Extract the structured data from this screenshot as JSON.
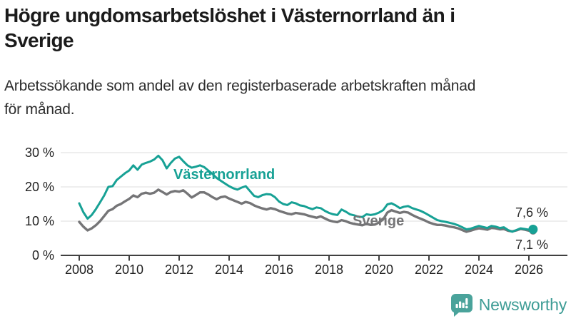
{
  "header": {
    "title_lines": [
      "Högre ungdomsarbetslöshet i Västernorrland än i",
      "Sverige"
    ],
    "subtitle_lines": [
      "Arbetssökande som andel av den registerbaserade arbetskraften månad",
      "för månad."
    ]
  },
  "chart_data": {
    "type": "line",
    "title": "Högre ungdomsarbetslöshet i Västernorrland än i Sverige",
    "subtitle": "Arbetssökande som andel av den registerbaserade arbetskraften månad för månad.",
    "grid": "horizontal",
    "legend_position": "inline-labels-on-lines",
    "x_start_year": 2008,
    "x_points_per_year": 6,
    "xlim": [
      2008,
      2026.2
    ],
    "ylim": [
      0,
      30
    ],
    "x_tick_years": [
      2008,
      2010,
      2012,
      2014,
      2016,
      2018,
      2020,
      2022,
      2024,
      2026
    ],
    "x_tick_labels": [
      "2008",
      "2010",
      "2012",
      "2014",
      "2016",
      "2018",
      "2020",
      "2022",
      "2024",
      "2026"
    ],
    "y_tick_values": [
      0,
      10,
      20,
      30
    ],
    "y_tick_labels": [
      "0 %",
      "10 %",
      "20 %",
      "30 %"
    ],
    "series": [
      {
        "name": "Västernorrland",
        "color": "#17a195",
        "end_label": "7,6 %",
        "end_value": 7.6,
        "values": [
          15.2,
          12.6,
          10.7,
          11.8,
          13.5,
          15.5,
          17.5,
          20.0,
          20.2,
          22.0,
          23.0,
          24.0,
          24.8,
          26.3,
          25.0,
          26.5,
          27.0,
          27.4,
          28.0,
          29.1,
          27.8,
          25.4,
          27.0,
          28.3,
          28.8,
          27.5,
          26.3,
          25.6,
          25.9,
          26.3,
          25.8,
          24.8,
          23.8,
          22.6,
          21.8,
          21.0,
          20.2,
          19.6,
          19.2,
          19.8,
          20.2,
          18.8,
          17.4,
          17.0,
          17.6,
          17.9,
          17.8,
          17.0,
          15.7,
          15.0,
          14.7,
          15.5,
          15.2,
          14.6,
          14.4,
          13.9,
          13.5,
          14.0,
          13.8,
          13.0,
          12.4,
          12.0,
          11.8,
          13.4,
          12.8,
          12.0,
          11.7,
          11.3,
          11.2,
          12.0,
          11.8,
          12.0,
          12.5,
          13.2,
          14.9,
          15.2,
          14.6,
          13.8,
          14.2,
          14.4,
          13.8,
          13.4,
          13.0,
          12.4,
          11.7,
          11.0,
          10.3,
          10.0,
          9.8,
          9.5,
          9.2,
          8.8,
          8.2,
          7.6,
          7.8,
          8.2,
          8.6,
          8.3,
          8.0,
          8.6,
          8.4,
          8.0,
          8.2,
          7.4,
          6.9,
          7.4,
          7.9,
          7.7,
          7.5,
          7.6
        ]
      },
      {
        "name": "Sverige",
        "color": "#757577",
        "end_label": "7,1 %",
        "end_value": 7.1,
        "values": [
          9.8,
          8.4,
          7.3,
          7.9,
          8.8,
          10.0,
          11.5,
          13.0,
          13.5,
          14.5,
          15.0,
          15.8,
          16.5,
          17.5,
          17.0,
          18.0,
          18.3,
          18.0,
          18.3,
          19.2,
          18.5,
          17.8,
          18.5,
          18.8,
          18.6,
          19.0,
          18.0,
          16.9,
          17.6,
          18.4,
          18.4,
          17.8,
          17.0,
          16.4,
          17.0,
          17.2,
          16.6,
          16.1,
          15.6,
          15.1,
          15.6,
          15.3,
          14.6,
          14.1,
          13.7,
          13.4,
          13.8,
          13.5,
          13.0,
          12.6,
          12.2,
          12.0,
          12.4,
          12.2,
          12.0,
          11.6,
          11.3,
          11.0,
          11.4,
          10.8,
          10.2,
          9.9,
          9.7,
          10.3,
          10.0,
          9.5,
          9.2,
          9.0,
          8.8,
          9.2,
          8.9,
          9.0,
          9.6,
          10.5,
          12.5,
          13.2,
          12.8,
          12.4,
          12.7,
          12.5,
          11.8,
          11.2,
          10.7,
          10.2,
          9.6,
          9.2,
          8.9,
          8.9,
          8.7,
          8.4,
          8.2,
          7.9,
          7.4,
          6.9,
          7.2,
          7.6,
          7.9,
          7.7,
          7.5,
          8.0,
          7.9,
          7.6,
          7.7,
          7.2,
          7.0,
          7.3,
          7.7,
          7.5,
          7.2,
          7.1
        ]
      }
    ],
    "colors": {
      "grid": "#dcdcdc",
      "axis": "#404040",
      "text": "#1f1f1f"
    }
  },
  "branding": {
    "logo_text": "Newsworthy",
    "logo_color": "#3f9d96"
  }
}
